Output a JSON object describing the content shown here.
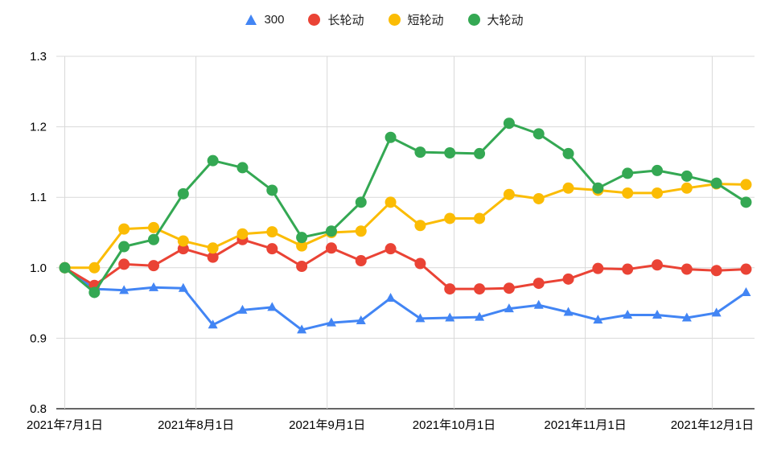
{
  "page": {
    "background": "#ffffff"
  },
  "chart_data": {
    "type": "line",
    "title": "",
    "xlabel": "",
    "ylabel": "",
    "ylim": [
      0.8,
      1.3
    ],
    "grid": true,
    "legend_position": "top",
    "x_range": [
      "2021-06-29",
      "2021-12-11"
    ],
    "x": [
      "2021-07-01",
      "2021-07-08",
      "2021-07-15",
      "2021-07-22",
      "2021-07-29",
      "2021-08-05",
      "2021-08-12",
      "2021-08-19",
      "2021-08-26",
      "2021-09-02",
      "2021-09-09",
      "2021-09-16",
      "2021-09-23",
      "2021-09-30",
      "2021-10-07",
      "2021-10-14",
      "2021-10-21",
      "2021-10-28",
      "2021-11-04",
      "2021-11-11",
      "2021-11-18",
      "2021-11-25",
      "2021-12-02",
      "2021-12-09"
    ],
    "x_ticks": [
      {
        "label": "2021年7月1日",
        "date": "2021-07-01"
      },
      {
        "label": "2021年8月1日",
        "date": "2021-08-01"
      },
      {
        "label": "2021年9月1日",
        "date": "2021-09-01"
      },
      {
        "label": "2021年10月1日",
        "date": "2021-10-01"
      },
      {
        "label": "2021年11月1日",
        "date": "2021-11-01"
      },
      {
        "label": "2021年12月1日",
        "date": "2021-12-01"
      }
    ],
    "y_ticks": [
      "0.8",
      "0.9",
      "1.0",
      "1.1",
      "1.2",
      "1.3"
    ],
    "series": [
      {
        "name": "300",
        "color": "#4285F4",
        "marker": "triangle",
        "values": [
          1.0,
          0.97,
          0.968,
          0.972,
          0.971,
          0.919,
          0.94,
          0.944,
          0.912,
          0.922,
          0.925,
          0.957,
          0.928,
          0.929,
          0.93,
          0.942,
          0.947,
          0.937,
          0.926,
          0.933,
          0.933,
          0.929,
          0.936,
          0.965
        ]
      },
      {
        "name": "长轮动",
        "color": "#EA4335",
        "marker": "circle",
        "values": [
          1.0,
          0.975,
          1.005,
          1.003,
          1.027,
          1.015,
          1.04,
          1.027,
          1.002,
          1.028,
          1.01,
          1.027,
          1.006,
          0.97,
          0.97,
          0.971,
          0.978,
          0.984,
          0.999,
          0.998,
          1.004,
          0.998,
          0.996,
          0.998
        ]
      },
      {
        "name": "短轮动",
        "color": "#FBBC04",
        "marker": "circle",
        "values": [
          1.0,
          1.0,
          1.055,
          1.057,
          1.038,
          1.028,
          1.048,
          1.051,
          1.031,
          1.05,
          1.052,
          1.093,
          1.06,
          1.07,
          1.07,
          1.104,
          1.098,
          1.113,
          1.11,
          1.106,
          1.106,
          1.113,
          1.119,
          1.118
        ]
      },
      {
        "name": "大轮动",
        "color": "#34A853",
        "marker": "circle",
        "values": [
          1.0,
          0.965,
          1.03,
          1.04,
          1.105,
          1.152,
          1.142,
          1.11,
          1.043,
          1.052,
          1.093,
          1.185,
          1.164,
          1.163,
          1.162,
          1.205,
          1.19,
          1.162,
          1.113,
          1.134,
          1.138,
          1.13,
          1.12,
          1.093
        ]
      }
    ],
    "style": {
      "gridline_color": "#d9d9d9",
      "baseline_color": "#333333",
      "axis_text_color": "#000000"
    }
  }
}
